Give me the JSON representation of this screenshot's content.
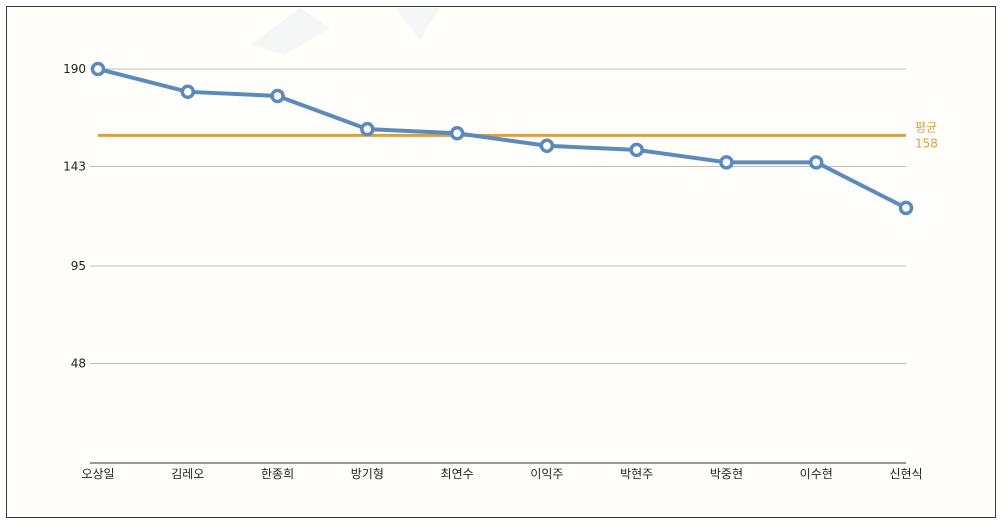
{
  "chart_data": {
    "type": "line",
    "categories": [
      "오상일",
      "김레오",
      "한종희",
      "방기형",
      "최연수",
      "이익주",
      "박현주",
      "박중현",
      "이수현",
      "신현식"
    ],
    "values": [
      190,
      179,
      177,
      161,
      159,
      153,
      151,
      145,
      145,
      123
    ],
    "yticks": [
      48,
      95,
      143,
      190
    ],
    "ylim": [
      0,
      190
    ],
    "average": {
      "label": "평균",
      "value": 158,
      "value_text": "158"
    },
    "colors": {
      "line": "#5b8bbd",
      "marker_fill": "#ffffff",
      "average": "#d9a04a",
      "grid": "#bdbdbd",
      "axis": "#333333"
    },
    "title": "",
    "xlabel": "",
    "ylabel": ""
  }
}
